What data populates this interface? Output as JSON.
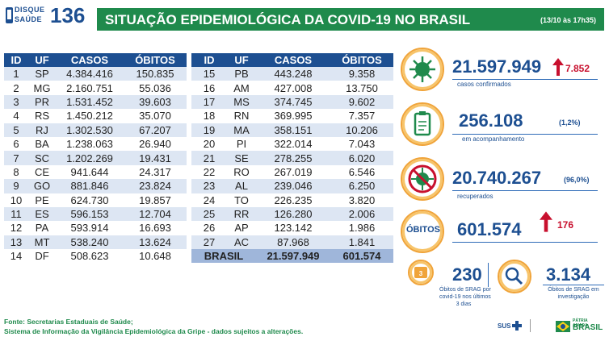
{
  "header": {
    "logo_line1": "DISQUE",
    "logo_line2": "SAÚDE",
    "logo_number": "136",
    "title": "SITUAÇÃO EPIDEMIOLÓGICA DA COVID-19 NO BRASIL",
    "date": "(13/10 às 17h35)"
  },
  "table": {
    "columns": [
      "ID",
      "UF",
      "CASOS",
      "ÓBITOS"
    ],
    "rows_left": [
      [
        "1",
        "SP",
        "4.384.416",
        "150.835"
      ],
      [
        "2",
        "MG",
        "2.160.751",
        "55.036"
      ],
      [
        "3",
        "PR",
        "1.531.452",
        "39.603"
      ],
      [
        "4",
        "RS",
        "1.450.212",
        "35.070"
      ],
      [
        "5",
        "RJ",
        "1.302.530",
        "67.207"
      ],
      [
        "6",
        "BA",
        "1.238.063",
        "26.940"
      ],
      [
        "7",
        "SC",
        "1.202.269",
        "19.431"
      ],
      [
        "8",
        "CE",
        "941.644",
        "24.317"
      ],
      [
        "9",
        "GO",
        "881.846",
        "23.824"
      ],
      [
        "10",
        "PE",
        "624.730",
        "19.857"
      ],
      [
        "11",
        "ES",
        "596.153",
        "12.704"
      ],
      [
        "12",
        "PA",
        "593.914",
        "16.693"
      ],
      [
        "13",
        "MT",
        "538.240",
        "13.624"
      ],
      [
        "14",
        "DF",
        "508.623",
        "10.648"
      ]
    ],
    "rows_right": [
      [
        "15",
        "PB",
        "443.248",
        "9.358"
      ],
      [
        "16",
        "AM",
        "427.008",
        "13.750"
      ],
      [
        "17",
        "MS",
        "374.745",
        "9.602"
      ],
      [
        "18",
        "RN",
        "369.995",
        "7.357"
      ],
      [
        "19",
        "MA",
        "358.151",
        "10.206"
      ],
      [
        "20",
        "PI",
        "322.014",
        "7.043"
      ],
      [
        "21",
        "SE",
        "278.255",
        "6.020"
      ],
      [
        "22",
        "RO",
        "267.019",
        "6.546"
      ],
      [
        "23",
        "AL",
        "239.046",
        "6.250"
      ],
      [
        "24",
        "TO",
        "226.235",
        "3.820"
      ],
      [
        "25",
        "RR",
        "126.280",
        "2.006"
      ],
      [
        "26",
        "AP",
        "123.142",
        "1.986"
      ],
      [
        "27",
        "AC",
        "87.968",
        "1.841"
      ]
    ],
    "total": {
      "label": "BRASIL",
      "casos": "21.597.949",
      "obitos": "601.574"
    }
  },
  "stats": {
    "casos": {
      "value": "21.597.949",
      "delta": "7.852",
      "label": "casos confirmados"
    },
    "acompanhamento": {
      "value": "256.108",
      "pct": "(1,2%)",
      "label": "em acompanhamento"
    },
    "recuperados": {
      "value": "20.740.267",
      "pct": "(96,0%)",
      "label": "recuperados"
    },
    "obitos": {
      "badge": "ÓBITOS",
      "value": "601.574",
      "delta": "176"
    },
    "srag_obitos": {
      "value": "230",
      "label1": "Óbitos de SRAG por",
      "label2": "covid-19 nos últimos",
      "label3": "3 dias"
    },
    "srag_investigacao": {
      "value": "3.134",
      "label1": "Óbitos de SRAG em",
      "label2": "investigação"
    }
  },
  "footer": {
    "line1": "Fonte: Secretarias Estaduais de Saúde;",
    "line2": "Sistema de Informação da Vigilância Epidemiológica da Gripe - dados sujeitos a alterações.",
    "logo_sus": "SUS",
    "logo_brasil_top": "PÁTRIA AMADA",
    "logo_brasil": "BRASIL"
  },
  "colors": {
    "primary_blue": "#1d4f91",
    "title_green": "#1f8a4c",
    "alert_red": "#c8102e",
    "badge_orange": "#f0a43a"
  }
}
